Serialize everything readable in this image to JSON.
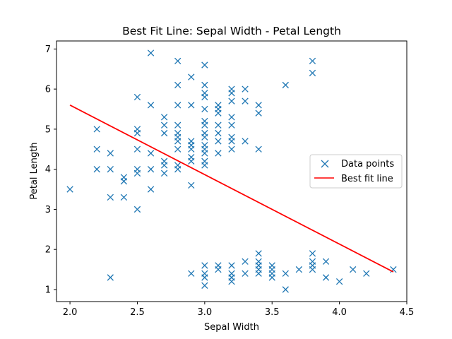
{
  "chart_data": {
    "type": "scatter",
    "title": "Best Fit Line: Sepal Width - Petal Length",
    "xlabel": "Sepal Width",
    "ylabel": "Petal Length",
    "xlim": [
      1.9,
      4.5
    ],
    "ylim": [
      0.7,
      7.2
    ],
    "xticks": [
      2.0,
      2.5,
      3.0,
      3.5,
      4.0,
      4.5
    ],
    "xtick_labels": [
      "2.0",
      "2.5",
      "3.0",
      "3.5",
      "4.0",
      "4.5"
    ],
    "yticks": [
      1,
      2,
      3,
      4,
      5,
      6,
      7
    ],
    "ytick_labels": [
      "1",
      "2",
      "3",
      "4",
      "5",
      "6",
      "7"
    ],
    "grid": false,
    "legend_position": "center-right",
    "series": [
      {
        "name": "Data points",
        "kind": "scatter",
        "marker": "x",
        "color": "#1f77b4",
        "points": [
          [
            2.0,
            3.5
          ],
          [
            2.2,
            5.0
          ],
          [
            2.2,
            4.5
          ],
          [
            2.2,
            4.0
          ],
          [
            2.3,
            4.4
          ],
          [
            2.3,
            4.0
          ],
          [
            2.3,
            3.3
          ],
          [
            2.3,
            1.3
          ],
          [
            2.4,
            3.8
          ],
          [
            2.4,
            3.7
          ],
          [
            2.4,
            3.3
          ],
          [
            2.5,
            5.0
          ],
          [
            2.5,
            4.9
          ],
          [
            2.5,
            4.5
          ],
          [
            2.5,
            4.0
          ],
          [
            2.5,
            3.9
          ],
          [
            2.5,
            3.0
          ],
          [
            2.5,
            5.8
          ],
          [
            2.6,
            6.9
          ],
          [
            2.6,
            5.6
          ],
          [
            2.6,
            4.4
          ],
          [
            2.6,
            4.0
          ],
          [
            2.6,
            3.5
          ],
          [
            2.7,
            5.3
          ],
          [
            2.7,
            5.1
          ],
          [
            2.7,
            4.9
          ],
          [
            2.7,
            4.2
          ],
          [
            2.7,
            4.1
          ],
          [
            2.7,
            3.9
          ],
          [
            2.8,
            6.7
          ],
          [
            2.8,
            6.1
          ],
          [
            2.8,
            5.6
          ],
          [
            2.8,
            5.1
          ],
          [
            2.8,
            4.9
          ],
          [
            2.8,
            4.8
          ],
          [
            2.8,
            4.7
          ],
          [
            2.8,
            4.5
          ],
          [
            2.8,
            4.1
          ],
          [
            2.8,
            4.0
          ],
          [
            2.9,
            6.3
          ],
          [
            2.9,
            5.6
          ],
          [
            2.9,
            4.7
          ],
          [
            2.9,
            4.6
          ],
          [
            2.9,
            4.5
          ],
          [
            2.9,
            4.3
          ],
          [
            2.9,
            4.2
          ],
          [
            2.9,
            3.6
          ],
          [
            2.9,
            1.4
          ],
          [
            3.0,
            6.6
          ],
          [
            3.0,
            6.1
          ],
          [
            3.0,
            5.9
          ],
          [
            3.0,
            5.8
          ],
          [
            3.0,
            5.5
          ],
          [
            3.0,
            5.2
          ],
          [
            3.0,
            5.1
          ],
          [
            3.0,
            4.9
          ],
          [
            3.0,
            4.8
          ],
          [
            3.0,
            4.6
          ],
          [
            3.0,
            4.5
          ],
          [
            3.0,
            4.4
          ],
          [
            3.0,
            4.2
          ],
          [
            3.0,
            4.1
          ],
          [
            3.0,
            1.6
          ],
          [
            3.0,
            1.4
          ],
          [
            3.0,
            1.3
          ],
          [
            3.0,
            1.1
          ],
          [
            3.1,
            5.6
          ],
          [
            3.1,
            5.5
          ],
          [
            3.1,
            5.4
          ],
          [
            3.1,
            5.1
          ],
          [
            3.1,
            4.9
          ],
          [
            3.1,
            4.7
          ],
          [
            3.1,
            4.4
          ],
          [
            3.1,
            1.6
          ],
          [
            3.1,
            1.5
          ],
          [
            3.2,
            6.0
          ],
          [
            3.2,
            5.9
          ],
          [
            3.2,
            5.7
          ],
          [
            3.2,
            5.3
          ],
          [
            3.2,
            5.1
          ],
          [
            3.2,
            4.8
          ],
          [
            3.2,
            4.7
          ],
          [
            3.2,
            4.5
          ],
          [
            3.2,
            1.6
          ],
          [
            3.2,
            1.4
          ],
          [
            3.2,
            1.3
          ],
          [
            3.2,
            1.2
          ],
          [
            3.3,
            6.0
          ],
          [
            3.3,
            5.7
          ],
          [
            3.3,
            4.7
          ],
          [
            3.3,
            1.7
          ],
          [
            3.3,
            1.4
          ],
          [
            3.4,
            5.6
          ],
          [
            3.4,
            5.4
          ],
          [
            3.4,
            4.5
          ],
          [
            3.4,
            1.9
          ],
          [
            3.4,
            1.7
          ],
          [
            3.4,
            1.6
          ],
          [
            3.4,
            1.5
          ],
          [
            3.4,
            1.4
          ],
          [
            3.5,
            1.6
          ],
          [
            3.5,
            1.5
          ],
          [
            3.5,
            1.4
          ],
          [
            3.5,
            1.3
          ],
          [
            3.6,
            6.1
          ],
          [
            3.6,
            1.4
          ],
          [
            3.6,
            1.0
          ],
          [
            3.7,
            1.5
          ],
          [
            3.8,
            6.7
          ],
          [
            3.8,
            6.4
          ],
          [
            3.8,
            1.9
          ],
          [
            3.8,
            1.7
          ],
          [
            3.8,
            1.6
          ],
          [
            3.8,
            1.5
          ],
          [
            3.9,
            1.7
          ],
          [
            3.9,
            1.3
          ],
          [
            4.0,
            1.2
          ],
          [
            4.1,
            1.5
          ],
          [
            4.2,
            1.4
          ],
          [
            4.4,
            1.5
          ]
        ]
      },
      {
        "name": "Best fit line",
        "kind": "line",
        "color": "#ff0000",
        "x": [
          2.0,
          4.4
        ],
        "y": [
          5.6,
          1.44
        ]
      }
    ]
  }
}
